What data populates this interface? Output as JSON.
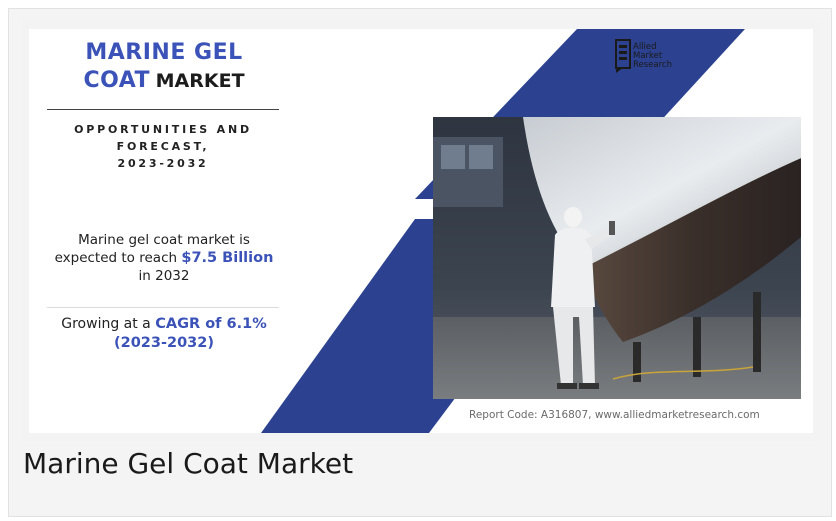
{
  "infographic": {
    "title_line1": "MARINE GEL",
    "title_line2_accent": "COAT",
    "title_line2_dark": "MARKET",
    "subtitle_line1": "OPPORTUNITIES AND",
    "subtitle_line2": "FORECAST,",
    "subtitle_line3": "2023-2032",
    "stat1_line1": "Marine gel coat market is",
    "stat1_line2_prefix": "expected to reach",
    "stat1_value": "$7.5 Billion",
    "stat1_line3": "in 2032",
    "stat2_prefix": "Growing at a",
    "stat2_value": "CAGR of 6.1%",
    "stat2_period": "(2023-2032)",
    "logo_line1": "Allied",
    "logo_line2": "Market",
    "logo_line3": "Research",
    "report_code": "Report Code: A316807, www.alliedmarketresearch.com"
  },
  "caption": "Marine Gel Coat Market",
  "colors": {
    "accent_blue": "#3b53b8",
    "band_navy": "#2c4290"
  },
  "icons": {
    "logo": "allied-market-research-logo",
    "photo": "worker-spraying-boat-hull-photo"
  }
}
